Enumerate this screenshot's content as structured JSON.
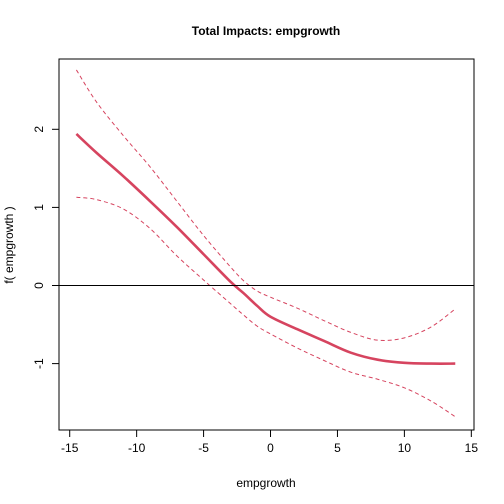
{
  "chart_data": {
    "type": "line",
    "title": "Total Impacts:  empgrowth",
    "xlabel": "empgrowth",
    "ylabel": "f( empgrowth )",
    "xlim": [
      -15.8,
      15.2
    ],
    "ylim": [
      -1.85,
      2.9
    ],
    "x_ticks": [
      -15,
      -10,
      -5,
      0,
      5,
      10,
      15
    ],
    "y_ticks": [
      -1,
      0,
      1,
      2
    ],
    "grid": false,
    "reference_line_y": 0,
    "series": [
      {
        "role": "estimate",
        "style": "solid",
        "color": "#D6445F",
        "x": [
          -14.5,
          -13,
          -11,
          -9,
          -7,
          -5,
          -3,
          -2,
          -1,
          0,
          2,
          4,
          6,
          8,
          10,
          12,
          13.8
        ],
        "y": [
          1.94,
          1.7,
          1.4,
          1.08,
          0.75,
          0.4,
          0.05,
          -0.1,
          -0.26,
          -0.4,
          -0.56,
          -0.71,
          -0.86,
          -0.95,
          -0.99,
          -1.0,
          -1.0
        ]
      },
      {
        "role": "upper-bound",
        "style": "dashed",
        "color": "#D6445F",
        "x": [
          -14.5,
          -13,
          -11,
          -9,
          -7,
          -5,
          -3,
          -2,
          -1,
          0,
          2,
          4,
          6,
          8,
          10,
          12,
          13.8
        ],
        "y": [
          2.76,
          2.35,
          1.92,
          1.52,
          1.08,
          0.64,
          0.24,
          0.06,
          -0.07,
          -0.15,
          -0.29,
          -0.45,
          -0.6,
          -0.7,
          -0.67,
          -0.53,
          -0.3
        ]
      },
      {
        "role": "lower-bound",
        "style": "dashed",
        "color": "#D6445F",
        "x": [
          -14.5,
          -13,
          -11,
          -9,
          -7,
          -5,
          -3,
          -2,
          -1,
          0,
          2,
          4,
          6,
          8,
          10,
          12,
          13.8
        ],
        "y": [
          1.13,
          1.1,
          0.98,
          0.73,
          0.38,
          0.07,
          -0.23,
          -0.38,
          -0.52,
          -0.62,
          -0.8,
          -0.96,
          -1.11,
          -1.2,
          -1.31,
          -1.48,
          -1.68
        ]
      }
    ]
  }
}
